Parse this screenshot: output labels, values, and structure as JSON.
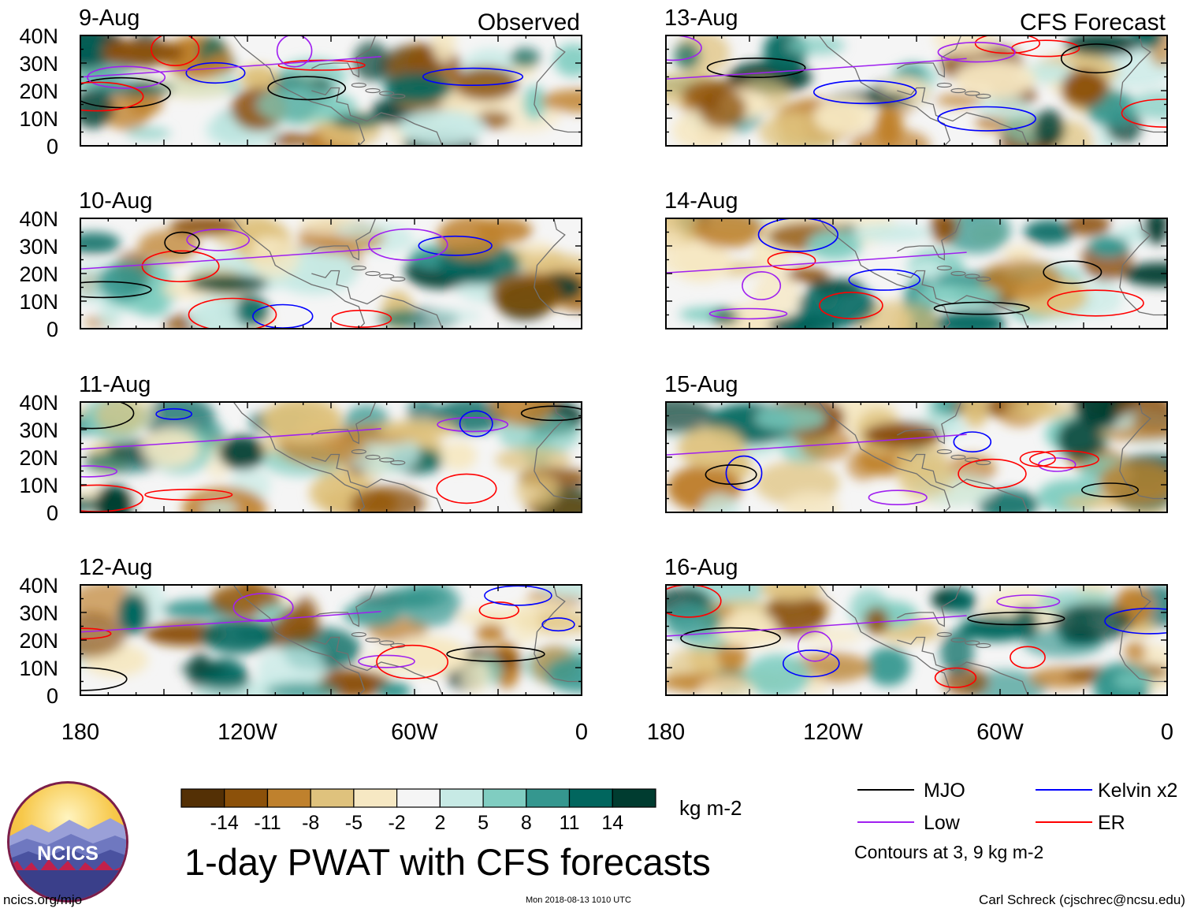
{
  "chart_data": {
    "type": "heatmap",
    "title": "1-day PWAT with CFS forecasts",
    "columns": [
      {
        "heading": "Observed",
        "panels": [
          "9-Aug",
          "10-Aug",
          "11-Aug",
          "12-Aug"
        ]
      },
      {
        "heading": "CFS Forecast",
        "panels": [
          "13-Aug",
          "14-Aug",
          "15-Aug",
          "16-Aug"
        ]
      }
    ],
    "latitude_ticks": [
      "40N",
      "30N",
      "20N",
      "10N",
      "0"
    ],
    "latitude_values": [
      40,
      30,
      20,
      10,
      0
    ],
    "longitude_ticks": [
      "180",
      "120W",
      "60W",
      "0"
    ],
    "longitude_values": [
      -180,
      -120,
      -60,
      0
    ],
    "lon_range": [
      -180,
      0
    ],
    "lat_range": [
      0,
      40
    ],
    "colorbar": {
      "unit": "kg m-2",
      "labels": [
        "-14",
        "-11",
        "-8",
        "-5",
        "-2",
        "2",
        "5",
        "8",
        "11",
        "14"
      ],
      "colors": [
        "#543005",
        "#8c510a",
        "#bf812d",
        "#dfc27d",
        "#f6e8c3",
        "#f5f5f5",
        "#c7eae5",
        "#80cdc1",
        "#35978f",
        "#01665e",
        "#003c30"
      ]
    },
    "legend": [
      {
        "label": "MJO",
        "color": "#000000"
      },
      {
        "label": "Kelvin x2",
        "color": "#0000ff"
      },
      {
        "label": "Low",
        "color": "#a020f0"
      },
      {
        "label": "ER",
        "color": "#ff0000"
      }
    ],
    "contour_note": "Contours at 3, 9 kg m-2"
  },
  "footer": {
    "url": "ncics.org/mjo",
    "timestamp": "Mon 2018-08-13 1010 UTC",
    "credit": "Carl Schreck (cjschrec@ncsu.edu)"
  },
  "logo": {
    "text": "NCICS"
  }
}
